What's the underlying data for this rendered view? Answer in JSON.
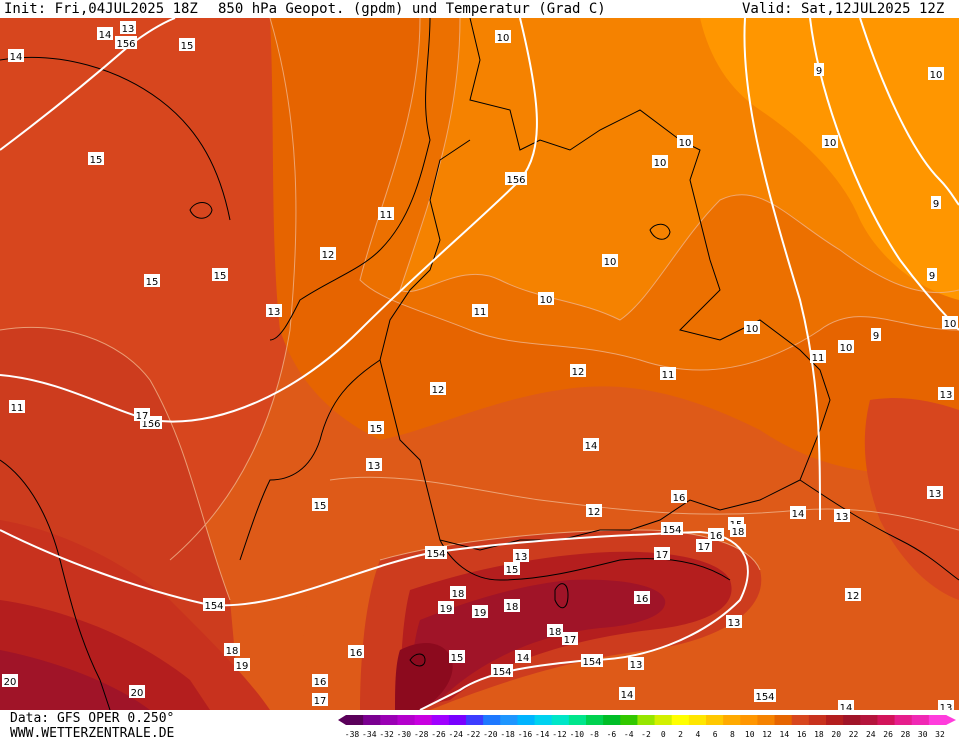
{
  "header": {
    "init": "Init: Fri,04JUL2025 18Z",
    "title": "850 hPa Geopot. (gpdm) und Temperatur (Grad C)",
    "valid": "Valid: Sat,12JUL2025 12Z"
  },
  "footer": {
    "data_source": "Data: GFS OPER 0.250°",
    "website": "WWW.WETTERZENTRALE.DE"
  },
  "colorbar": {
    "ticks": [
      "-38",
      "-34",
      "-32",
      "-30",
      "-28",
      "-26",
      "-24",
      "-22",
      "-20",
      "-18",
      "-16",
      "-14",
      "-12",
      "-10",
      "-8",
      "-6",
      "-4",
      "-2",
      "0",
      "2",
      "4",
      "6",
      "8",
      "10",
      "12",
      "14",
      "16",
      "18",
      "20",
      "22",
      "24",
      "26",
      "28",
      "30",
      "32"
    ],
    "colors": [
      "#5a005a",
      "#7a0090",
      "#9a00b4",
      "#b400cc",
      "#c800e0",
      "#a000ff",
      "#7800ff",
      "#3c3cff",
      "#1e78ff",
      "#1e96ff",
      "#00b4ff",
      "#00d2f0",
      "#00e6c8",
      "#00e68c",
      "#00d250",
      "#00be28",
      "#32c800",
      "#96e600",
      "#d2f000",
      "#ffff00",
      "#ffe600",
      "#ffc800",
      "#ffaa00",
      "#ff9600",
      "#f58200",
      "#e66400",
      "#d7461e",
      "#c8321e",
      "#b41e1e",
      "#a01428",
      "#b4143c",
      "#d2145a",
      "#e61e8c",
      "#f028b4",
      "#ff3cdc"
    ]
  },
  "map": {
    "colors": {
      "t10": "#ff9600",
      "t11": "#f58200",
      "t12": "#ec7000",
      "t13": "#e66400",
      "t14": "#de5a18",
      "t15": "#d7461e",
      "t16": "#cd3c1e",
      "t17": "#c8321e",
      "t18": "#b41e1e",
      "t19": "#a01428",
      "t20": "#8c0a1e",
      "border": "#000000",
      "geopotential": "#ffffff",
      "isotherm": "#f0b48c"
    },
    "geopotential_labels": [
      {
        "text": "156"
      },
      {
        "text": "156"
      },
      {
        "text": "156"
      },
      {
        "text": "154"
      },
      {
        "text": "154"
      },
      {
        "text": "154"
      },
      {
        "text": "154"
      },
      {
        "text": "154"
      },
      {
        "text": "154"
      }
    ],
    "temperature_labels": [
      {
        "text": "14"
      },
      {
        "text": "13"
      },
      {
        "text": "15"
      },
      {
        "text": "15"
      },
      {
        "text": "15"
      },
      {
        "text": "15"
      },
      {
        "text": "10"
      },
      {
        "text": "10"
      },
      {
        "text": "10"
      },
      {
        "text": "10"
      },
      {
        "text": "10"
      },
      {
        "text": "10"
      },
      {
        "text": "10"
      },
      {
        "text": "10"
      },
      {
        "text": "9"
      },
      {
        "text": "9"
      },
      {
        "text": "9"
      },
      {
        "text": "9"
      },
      {
        "text": "10"
      },
      {
        "text": "10"
      },
      {
        "text": "11"
      },
      {
        "text": "12"
      },
      {
        "text": "13"
      },
      {
        "text": "11"
      },
      {
        "text": "11"
      },
      {
        "text": "12"
      },
      {
        "text": "12"
      },
      {
        "text": "11"
      },
      {
        "text": "11"
      },
      {
        "text": "17"
      },
      {
        "text": "15"
      },
      {
        "text": "13"
      },
      {
        "text": "14"
      },
      {
        "text": "13"
      },
      {
        "text": "15"
      },
      {
        "text": "16"
      },
      {
        "text": "12"
      },
      {
        "text": "13"
      },
      {
        "text": "14"
      },
      {
        "text": "13"
      },
      {
        "text": "12"
      },
      {
        "text": "13"
      },
      {
        "text": "13"
      },
      {
        "text": "15"
      },
      {
        "text": "17"
      },
      {
        "text": "18"
      },
      {
        "text": "19"
      },
      {
        "text": "19"
      },
      {
        "text": "18"
      },
      {
        "text": "18"
      },
      {
        "text": "17"
      },
      {
        "text": "16"
      },
      {
        "text": "16"
      },
      {
        "text": "15"
      },
      {
        "text": "18"
      },
      {
        "text": "17"
      },
      {
        "text": "14"
      },
      {
        "text": "15"
      },
      {
        "text": "14"
      },
      {
        "text": "13"
      },
      {
        "text": "14"
      },
      {
        "text": "13"
      },
      {
        "text": "18"
      },
      {
        "text": "19"
      },
      {
        "text": "16"
      },
      {
        "text": "16"
      },
      {
        "text": "17"
      },
      {
        "text": "20"
      },
      {
        "text": "20"
      },
      {
        "text": "14"
      }
    ]
  }
}
